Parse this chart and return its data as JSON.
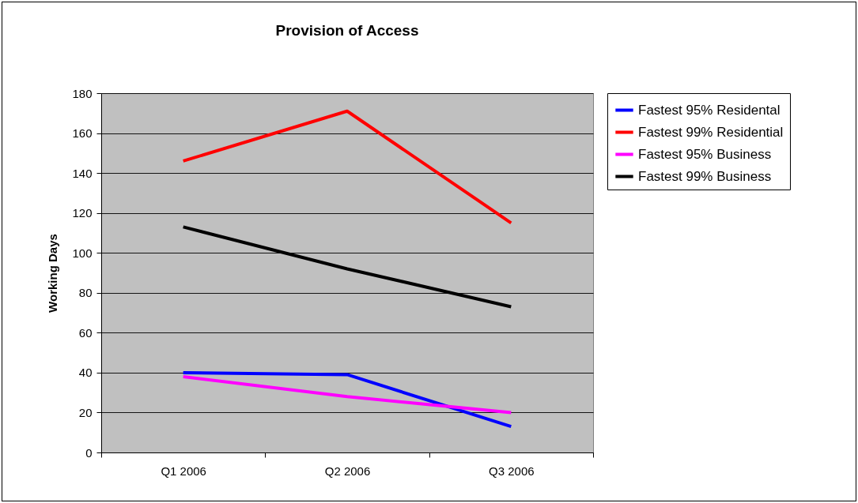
{
  "chart_data": {
    "type": "line",
    "title": "Provision of Access",
    "ylabel": "Working Days",
    "categories": [
      "Q1 2006",
      "Q2 2006",
      "Q3 2006"
    ],
    "series": [
      {
        "name": "Fastest 95% Residental",
        "color": "#0000ff",
        "values": [
          40,
          39,
          13
        ]
      },
      {
        "name": "Fastest 99% Residential",
        "color": "#ff0000",
        "values": [
          146,
          171,
          115
        ]
      },
      {
        "name": "Fastest 95% Business",
        "color": "#ff00ff",
        "values": [
          38,
          28,
          20
        ]
      },
      {
        "name": "Fastest 99% Business",
        "color": "#000000",
        "values": [
          113,
          92,
          73
        ]
      }
    ],
    "ylim": [
      0,
      180
    ],
    "yticks": [
      0,
      20,
      40,
      60,
      80,
      100,
      120,
      140,
      160,
      180
    ],
    "grid": "y",
    "legend": "right",
    "marker": "none",
    "line_style": "solid"
  }
}
